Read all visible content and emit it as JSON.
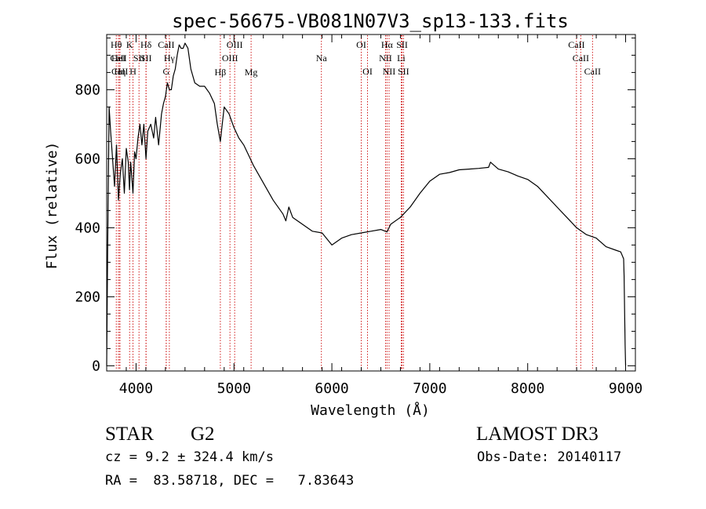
{
  "chart_data": {
    "type": "line",
    "title": "spec-56675-VB081N07V3_sp13-133.fits",
    "xlabel": "Wavelength (Å)",
    "ylabel": "Flux (relative)",
    "xlim": [
      3700,
      9100
    ],
    "ylim": [
      -15,
      960
    ],
    "xticks": [
      4000,
      5000,
      6000,
      7000,
      8000,
      9000
    ],
    "yticks": [
      0,
      200,
      400,
      600,
      800
    ],
    "x_minor_step": 200,
    "y_minor_step": 50,
    "line_color": "#000000",
    "marker_color": "#cc0000",
    "spectrum": {
      "name": "flux",
      "x": [
        3700,
        3710,
        3725,
        3740,
        3760,
        3780,
        3800,
        3820,
        3840,
        3860,
        3880,
        3900,
        3920,
        3933,
        3945,
        3968,
        3985,
        4000,
        4020,
        4040,
        4060,
        4080,
        4101,
        4120,
        4150,
        4180,
        4200,
        4230,
        4260,
        4280,
        4300,
        4320,
        4340,
        4360,
        4380,
        4400,
        4420,
        4440,
        4460,
        4480,
        4500,
        4530,
        4560,
        4600,
        4650,
        4700,
        4750,
        4800,
        4830,
        4861,
        4880,
        4900,
        4950,
        5000,
        5050,
        5100,
        5150,
        5200,
        5300,
        5400,
        5500,
        5530,
        5560,
        5600,
        5700,
        5800,
        5900,
        6000,
        6100,
        6200,
        6300,
        6400,
        6500,
        6563,
        6600,
        6700,
        6800,
        6900,
        7000,
        7100,
        7200,
        7300,
        7400,
        7500,
        7600,
        7620,
        7700,
        7800,
        7900,
        8000,
        8100,
        8200,
        8300,
        8400,
        8500,
        8600,
        8700,
        8800,
        8900,
        8950,
        8980,
        8985,
        8990,
        8995,
        9000
      ],
      "values": [
        0,
        330,
        750,
        680,
        600,
        520,
        640,
        480,
        560,
        600,
        500,
        630,
        590,
        510,
        590,
        500,
        620,
        600,
        660,
        700,
        640,
        700,
        600,
        680,
        700,
        660,
        720,
        640,
        730,
        760,
        780,
        820,
        800,
        800,
        840,
        860,
        900,
        930,
        920,
        920,
        935,
        920,
        860,
        820,
        810,
        810,
        790,
        760,
        700,
        650,
        700,
        750,
        730,
        690,
        660,
        640,
        610,
        580,
        530,
        480,
        440,
        420,
        460,
        430,
        410,
        390,
        385,
        350,
        370,
        380,
        385,
        390,
        395,
        388,
        410,
        430,
        460,
        500,
        535,
        555,
        560,
        568,
        570,
        572,
        575,
        590,
        570,
        562,
        550,
        540,
        520,
        490,
        460,
        430,
        400,
        380,
        370,
        345,
        335,
        330,
        310,
        260,
        150,
        60,
        0
      ]
    },
    "lines": [
      {
        "label": "Hθ",
        "x": 3798,
        "row": 1
      },
      {
        "label": "CaII",
        "x": 3820,
        "row": 2
      },
      {
        "label": "HeI",
        "x": 3820,
        "row": 2
      },
      {
        "label": "CaII",
        "x": 3834,
        "row": 3
      },
      {
        "label": "Hη",
        "x": 3835,
        "row": 3
      },
      {
        "label": "K",
        "x": 3934,
        "row": 1
      },
      {
        "label": "H",
        "x": 3969,
        "row": 3
      },
      {
        "label": "SII",
        "x": 4030,
        "row": 2
      },
      {
        "label": "Hδ",
        "x": 4102,
        "row": 1
      },
      {
        "label": "SII",
        "x": 4102,
        "row": 2
      },
      {
        "label": "CaII",
        "x": 4308,
        "row": 1
      },
      {
        "label": "Hγ",
        "x": 4340,
        "row": 2
      },
      {
        "label": "G",
        "x": 4308,
        "row": 3
      },
      {
        "label": "Hβ",
        "x": 4861,
        "row": 4
      },
      {
        "label": "OIII",
        "x": 4959,
        "row": 2
      },
      {
        "label": "OIII",
        "x": 5007,
        "row": 1
      },
      {
        "label": "Mg",
        "x": 5175,
        "row": 4
      },
      {
        "label": "Na",
        "x": 5893,
        "row": 2
      },
      {
        "label": "OI",
        "x": 6300,
        "row": 1
      },
      {
        "label": "OI",
        "x": 6364,
        "row": 3
      },
      {
        "label": "Hα",
        "x": 6563,
        "row": 1
      },
      {
        "label": "NII",
        "x": 6548,
        "row": 2
      },
      {
        "label": "NII",
        "x": 6584,
        "row": 3
      },
      {
        "label": "SII",
        "x": 6717,
        "row": 1
      },
      {
        "label": "Li",
        "x": 6708,
        "row": 2
      },
      {
        "label": "SII",
        "x": 6731,
        "row": 3
      },
      {
        "label": "CaII",
        "x": 8498,
        "row": 1
      },
      {
        "label": "CaII",
        "x": 8542,
        "row": 2
      },
      {
        "label": "CaII",
        "x": 8662,
        "row": 3
      }
    ]
  },
  "info": {
    "class": "STAR",
    "subclass": "G2",
    "survey": "LAMOST DR3",
    "cz": "cz = 9.2 ± 324.4 km/s",
    "obs_date": "Obs-Date: 20140117",
    "coords": "RA =  83.58718, DEC =   7.83643"
  }
}
